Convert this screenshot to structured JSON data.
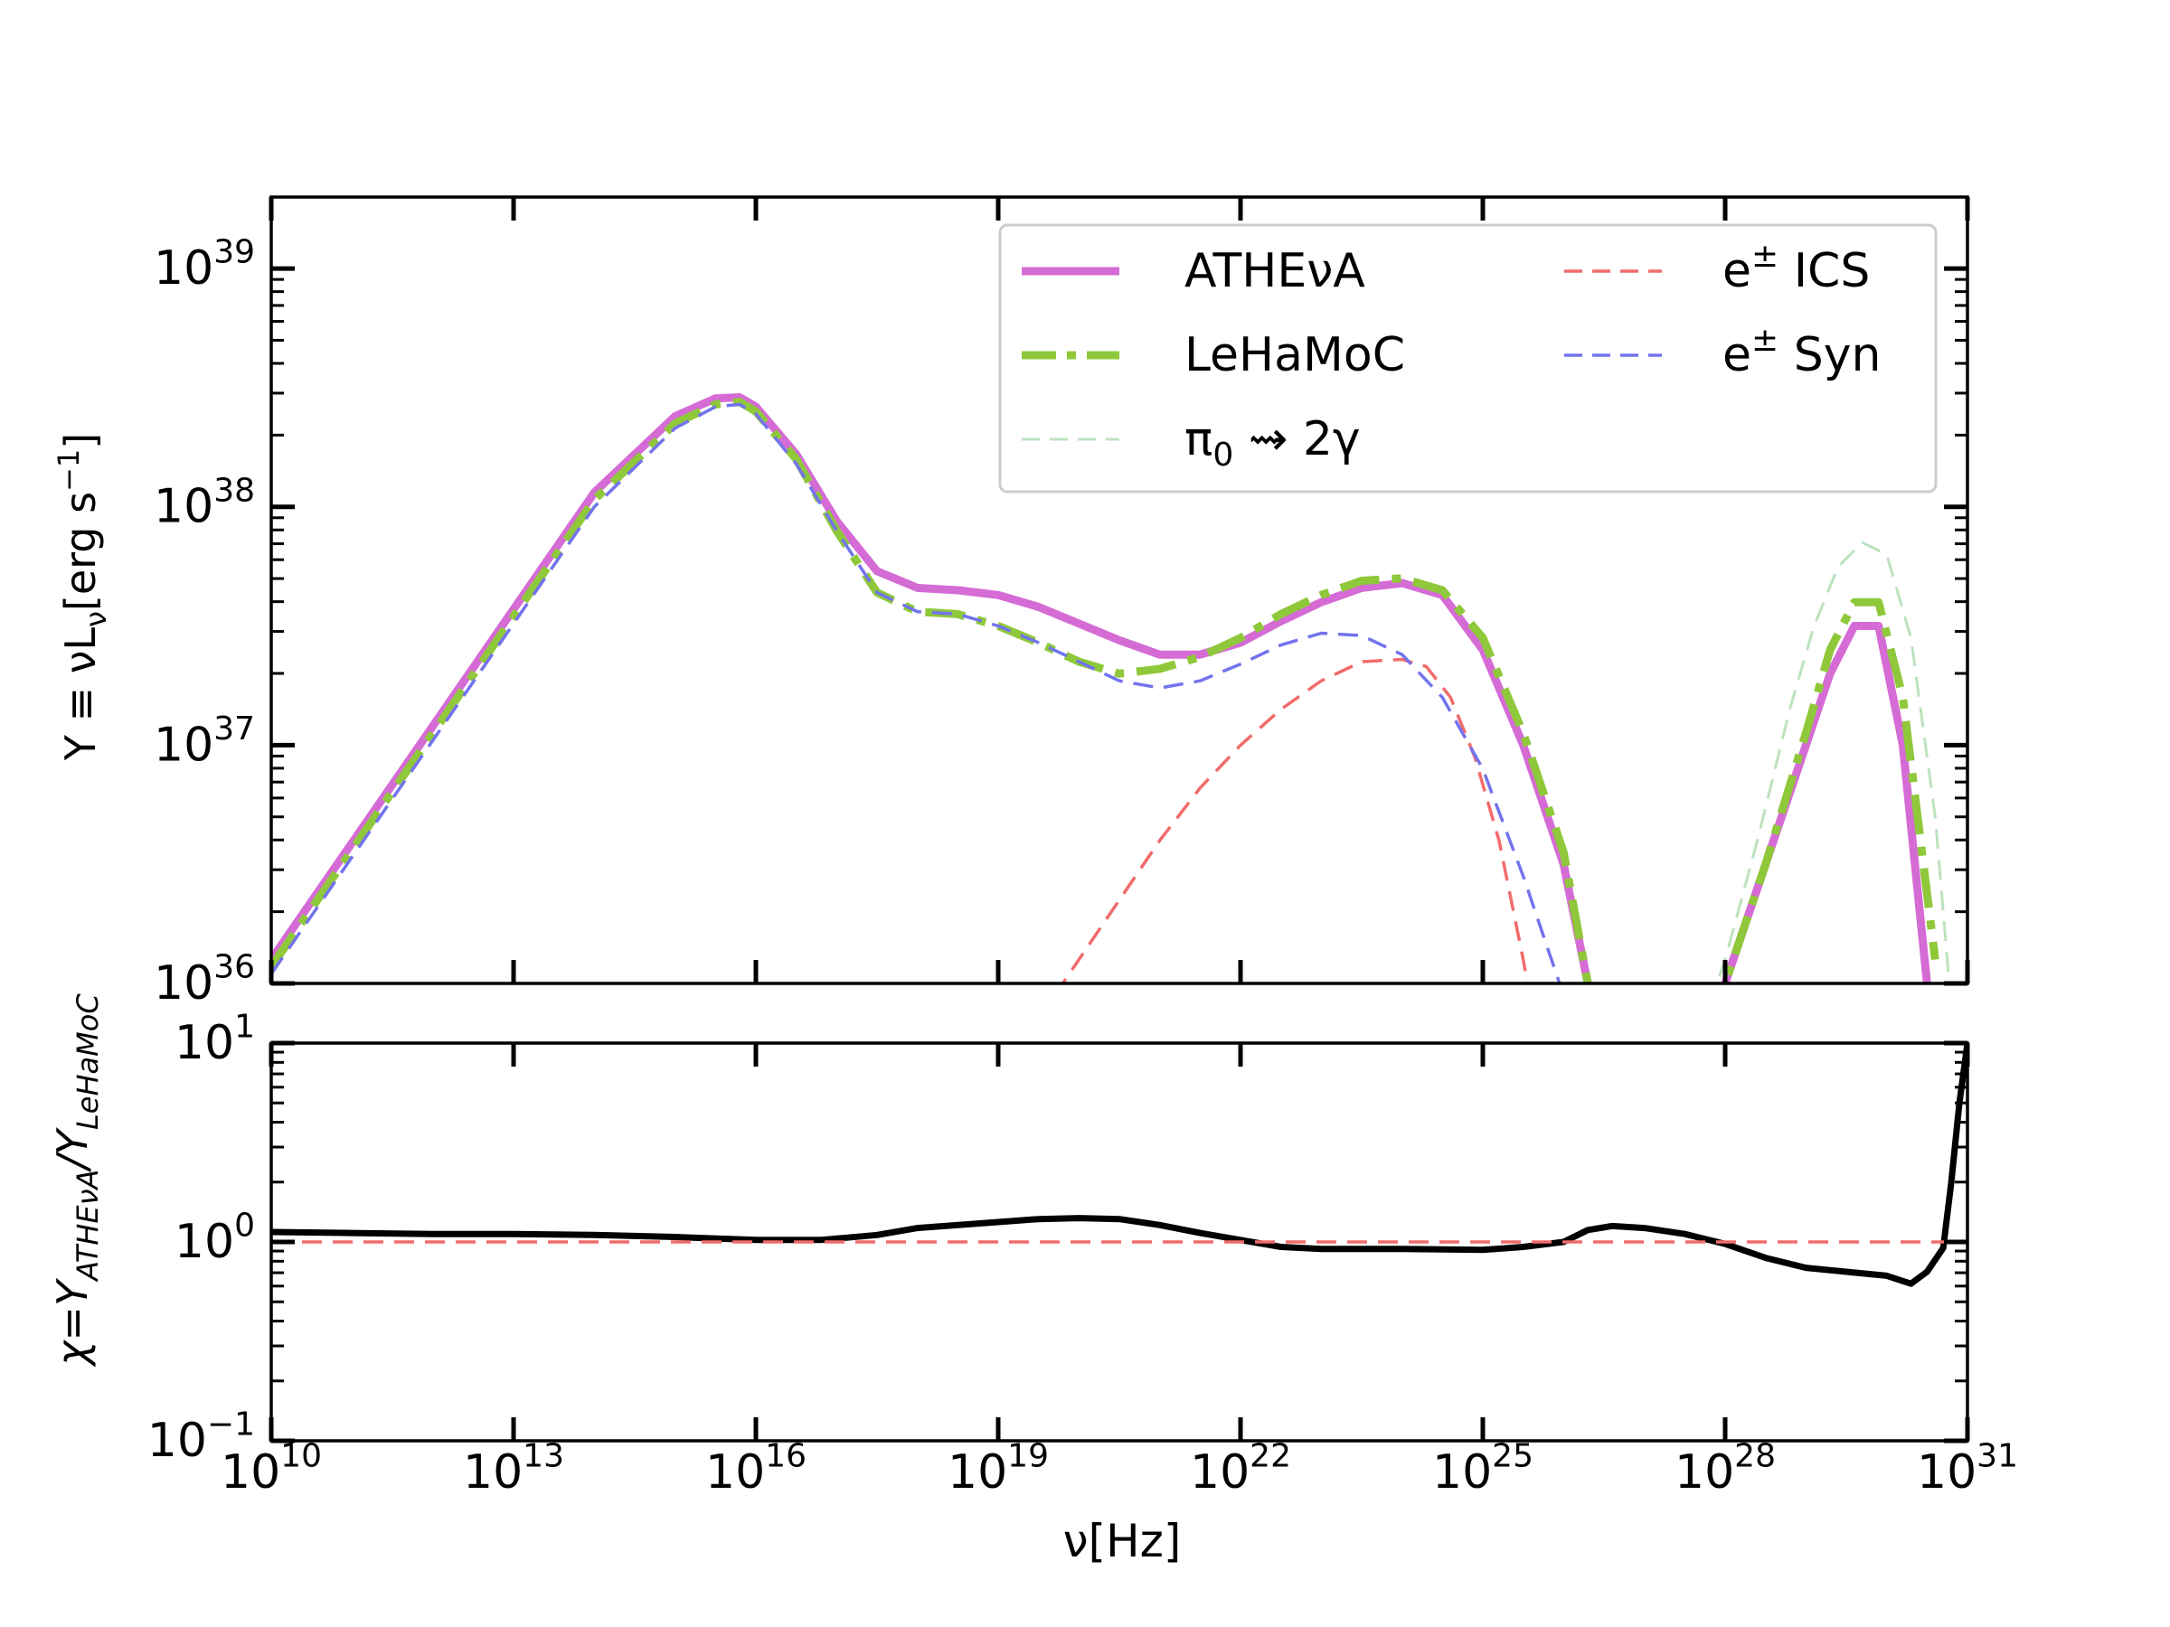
{
  "chart_data": [
    {
      "type": "line",
      "panel": "top",
      "xscale": "log",
      "yscale": "log",
      "xlim_exp": [
        10,
        31
      ],
      "ylim_exp": [
        36,
        39.3
      ],
      "x_tick_exps": [
        10,
        13,
        16,
        19,
        22,
        25,
        28,
        31
      ],
      "y_tick_exps": [
        36,
        37,
        38,
        39
      ],
      "y_tick_labels": [
        {
          "base": "10",
          "exp": "36"
        },
        {
          "base": "10",
          "exp": "37"
        },
        {
          "base": "10",
          "exp": "38"
        },
        {
          "base": "10",
          "exp": "39"
        }
      ],
      "ylabel": {
        "pre": "Y ≡  νL",
        "sub": "ν",
        "mid": "[erg s",
        "sup": "−1",
        "post": "]"
      },
      "legend": {
        "placement": "top-right",
        "ncols": 2,
        "entries": [
          {
            "label": "ATHEνA"
          },
          {
            "label": "LeHaMoC"
          },
          {
            "label": "π",
            "sub": "0",
            "post": " ⇝  2γ"
          },
          {
            "label": "e",
            "sup": "±",
            "post": " ICS"
          },
          {
            "label": "e",
            "sup": "±",
            "post": " Syn"
          }
        ]
      },
      "series": [
        {
          "name": "ATHEνA",
          "color": "#d56bd5",
          "dash": "solid",
          "width": 9,
          "x": [
            10,
            11,
            12,
            13,
            14,
            15,
            15.5,
            15.8,
            16,
            16.5,
            17,
            17.5,
            18,
            18.5,
            19,
            19.5,
            20,
            20.5,
            21,
            21.5,
            22,
            22.5,
            23,
            23.5,
            24,
            24.5,
            25,
            25.5,
            26,
            26.3,
            27,
            27.5,
            28,
            28.5,
            29,
            29.3,
            29.6,
            29.9,
            30.2,
            30.5
          ],
          "y": [
            36.1,
            36.59,
            37.08,
            37.57,
            38.06,
            38.38,
            38.455,
            38.46,
            38.42,
            38.22,
            37.94,
            37.73,
            37.66,
            37.65,
            37.63,
            37.58,
            37.51,
            37.44,
            37.38,
            37.38,
            37.43,
            37.52,
            37.6,
            37.66,
            37.68,
            37.63,
            37.4,
            37.0,
            36.5,
            36.0,
            35.6,
            35.6,
            36.0,
            36.5,
            37.0,
            37.3,
            37.5,
            37.5,
            37.0,
            36.0
          ]
        },
        {
          "name": "LeHaMoC",
          "color": "#8fc83a",
          "dash": "dashdot",
          "width": 9,
          "x": [
            10,
            11,
            12,
            13,
            14,
            15,
            15.5,
            15.8,
            16,
            16.5,
            17,
            17.5,
            18,
            18.5,
            19,
            19.5,
            20,
            20.5,
            21,
            21.5,
            22,
            22.5,
            23,
            23.5,
            24,
            24.5,
            25,
            25.5,
            26,
            26.3,
            27,
            27.5,
            28,
            28.5,
            29,
            29.3,
            29.6,
            29.9,
            30.2,
            30.6
          ],
          "y": [
            36.07,
            36.56,
            37.05,
            37.54,
            38.03,
            38.35,
            38.43,
            38.44,
            38.4,
            38.2,
            37.9,
            37.64,
            37.56,
            37.55,
            37.5,
            37.43,
            37.35,
            37.3,
            37.32,
            37.37,
            37.45,
            37.55,
            37.63,
            37.69,
            37.7,
            37.65,
            37.45,
            37.05,
            36.55,
            36.0,
            35.6,
            35.6,
            36.0,
            36.5,
            37.05,
            37.4,
            37.6,
            37.6,
            37.2,
            36.1
          ]
        },
        {
          "name": "π0 ⇝ 2γ",
          "color": "#bde2bd",
          "dash": "dashed",
          "width": 3,
          "x": [
            27.2,
            27.6,
            28,
            28.4,
            28.8,
            29.1,
            29.4,
            29.7,
            30,
            30.3,
            30.6,
            30.8
          ],
          "y": [
            35.6,
            35.7,
            36.1,
            36.6,
            37.15,
            37.5,
            37.75,
            37.85,
            37.8,
            37.45,
            36.7,
            35.9
          ]
        },
        {
          "name": "e± ICS",
          "color": "#f26b6b",
          "dash": "dashed",
          "width": 3.5,
          "x": [
            19.7,
            20,
            20.5,
            21,
            21.5,
            22,
            22.5,
            23,
            23.5,
            24,
            24.3,
            24.6,
            24.9,
            25.2,
            25.5,
            25.8
          ],
          "y": [
            35.95,
            36.1,
            36.35,
            36.6,
            36.82,
            37.0,
            37.15,
            37.27,
            37.35,
            37.36,
            37.33,
            37.2,
            36.95,
            36.6,
            36.1,
            35.5
          ]
        },
        {
          "name": "e± Syn",
          "color": "#7373ee",
          "dash": "dashed",
          "width": 3.5,
          "x": [
            10,
            11,
            12,
            13,
            14,
            15,
            15.5,
            15.8,
            16,
            16.5,
            17,
            17.5,
            18,
            18.5,
            19,
            19.5,
            20,
            20.5,
            21,
            21.5,
            22,
            22.5,
            23,
            23.5,
            24,
            24.5,
            25,
            25.5,
            26,
            26.2
          ],
          "y": [
            36.04,
            36.53,
            37.02,
            37.51,
            38.0,
            38.33,
            38.42,
            38.43,
            38.39,
            38.18,
            37.9,
            37.64,
            37.56,
            37.55,
            37.5,
            37.43,
            37.35,
            37.27,
            37.24,
            37.27,
            37.34,
            37.42,
            37.47,
            37.46,
            37.38,
            37.2,
            36.9,
            36.45,
            35.95,
            35.7
          ]
        }
      ]
    },
    {
      "type": "line",
      "panel": "bottom",
      "xscale": "log",
      "yscale": "log",
      "xlim_exp": [
        10,
        31
      ],
      "ylim_exp": [
        -1,
        1
      ],
      "x_tick_exps": [
        10,
        13,
        16,
        19,
        22,
        25,
        28,
        31
      ],
      "x_tick_labels": [
        {
          "base": "10",
          "exp": "10"
        },
        {
          "base": "10",
          "exp": "13"
        },
        {
          "base": "10",
          "exp": "16"
        },
        {
          "base": "10",
          "exp": "19"
        },
        {
          "base": "10",
          "exp": "22"
        },
        {
          "base": "10",
          "exp": "25"
        },
        {
          "base": "10",
          "exp": "28"
        },
        {
          "base": "10",
          "exp": "31"
        }
      ],
      "y_tick_exps": [
        -1,
        0,
        1
      ],
      "y_tick_labels": [
        {
          "base": "10",
          "exp": "−1"
        },
        {
          "base": "10",
          "exp": "0"
        },
        {
          "base": "10",
          "exp": "1"
        }
      ],
      "xlabel": "ν[Hz]",
      "ylabel": {
        "pre": "χ=Y",
        "sub1": "ATHEνA",
        "mid": "/Y",
        "sub2": "LeHaMoC"
      },
      "series": [
        {
          "name": "ratio",
          "color": "#000000",
          "dash": "solid",
          "width": 7,
          "x": [
            10,
            11,
            12,
            13,
            14,
            15,
            16,
            16.8,
            17.5,
            18,
            19,
            19.5,
            20,
            20.5,
            21,
            21.5,
            22,
            22.5,
            23,
            24,
            25,
            25.5,
            26,
            26.3,
            26.6,
            27,
            27.5,
            28,
            28.5,
            29,
            29.5,
            30,
            30.3,
            30.5,
            30.7,
            30.8,
            30.9,
            31
          ],
          "y": [
            0.05,
            0.045,
            0.04,
            0.04,
            0.035,
            0.025,
            0.01,
            0.01,
            0.035,
            0.07,
            0.1,
            0.115,
            0.12,
            0.115,
            0.085,
            0.045,
            0.01,
            -0.025,
            -0.035,
            -0.035,
            -0.04,
            -0.025,
            0.0,
            0.06,
            0.08,
            0.07,
            0.04,
            -0.01,
            -0.08,
            -0.13,
            -0.15,
            -0.17,
            -0.21,
            -0.15,
            -0.03,
            0.3,
            0.7,
            1.0
          ]
        },
        {
          "name": "unity",
          "color": "#f26b6b",
          "dash": "dashed",
          "width": 3.5,
          "x": [
            10,
            31
          ],
          "y": [
            0,
            0
          ]
        }
      ]
    }
  ]
}
